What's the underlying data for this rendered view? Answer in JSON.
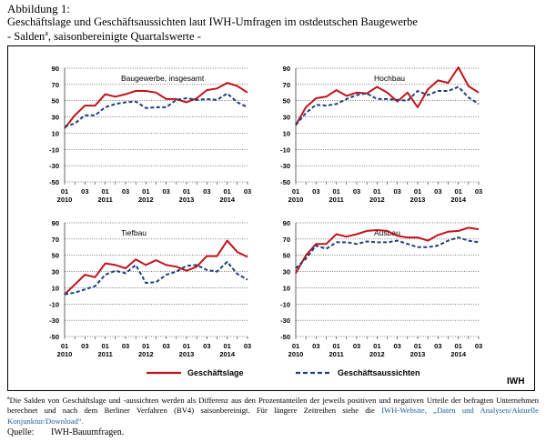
{
  "figure": {
    "label": "Abbildung 1:",
    "title": "Geschäftslage und Geschäftsaussichten laut IWH-Umfragen im ostdeutschen Baugewerbe",
    "subtitle_prefix": "- Salden",
    "subtitle_sup": "a",
    "subtitle_suffix": ", saisonbereinigte Quartalswerte -"
  },
  "legend": {
    "series1": "Geschäftslage",
    "series2": "Geschäftsaussichten",
    "brand": "IWH"
  },
  "colors": {
    "geschaeftslage": "#c0141c",
    "geschaeftsaussichten": "#1f3f7a",
    "grid": "#000000"
  },
  "footnote": {
    "sup": "a",
    "text": "Die Salden von Geschäftslage und -aussichten werden als Differenz aus den Prozentanteilen der jeweils positiven und negativen Urteile der befragten Unternehmen berechnet und nach dem Berliner Verfahren (BV4) saisonbereinigt. Für längere Zeitreihen siehe die ",
    "link": "IWH-Website, „Daten und Analysen/Aktuelle Konjunktur/Download“.",
    "end": ""
  },
  "source": {
    "label": "Quelle:",
    "text": "IWH-Bauumfragen."
  },
  "chart_data": [
    {
      "type": "line",
      "panel_label": "Baugewerbe, insgesamt",
      "x_ticks_quarter": [
        "01",
        "03",
        "01",
        "03",
        "01",
        "03",
        "01",
        "03",
        "01",
        "03"
      ],
      "x_ticks_year": [
        "2010",
        "2011",
        "2012",
        "2013",
        "2014"
      ],
      "y_ticks": [
        "90",
        "70",
        "50",
        "30",
        "10",
        "-10",
        "-30",
        "-50"
      ],
      "ylim": [
        -50,
        90
      ],
      "grid": true,
      "series": [
        {
          "name": "Geschäftslage",
          "values": [
            16,
            32,
            44,
            44,
            58,
            55,
            58,
            62,
            62,
            60,
            52,
            52,
            48,
            53,
            63,
            65,
            72,
            68,
            60
          ]
        },
        {
          "name": "Geschäftsaussichten",
          "values": [
            18,
            22,
            32,
            32,
            42,
            46,
            48,
            49,
            41,
            42,
            42,
            51,
            53,
            51,
            52,
            51,
            59,
            48,
            42
          ]
        }
      ]
    },
    {
      "type": "line",
      "panel_label": "Hochbau",
      "x_ticks_quarter": [
        "01",
        "03",
        "01",
        "03",
        "01",
        "03",
        "01",
        "03",
        "01",
        "03"
      ],
      "x_ticks_year": [
        "2010",
        "2011",
        "2012",
        "2013",
        "2014"
      ],
      "y_ticks": [
        "90",
        "70",
        "50",
        "30",
        "10",
        "-10",
        "-30",
        "-50"
      ],
      "ylim": [
        -50,
        90
      ],
      "grid": true,
      "series": [
        {
          "name": "Geschäftslage",
          "values": [
            20,
            42,
            53,
            55,
            63,
            56,
            60,
            59,
            67,
            60,
            49,
            60,
            42,
            64,
            75,
            72,
            91,
            68,
            60
          ]
        },
        {
          "name": "Geschäftsaussichten",
          "values": [
            20,
            35,
            45,
            44,
            46,
            52,
            57,
            59,
            52,
            52,
            51,
            50,
            62,
            57,
            62,
            62,
            67,
            54,
            46
          ]
        }
      ]
    },
    {
      "type": "line",
      "panel_label": "Tiefbau",
      "x_ticks_quarter": [
        "01",
        "03",
        "01",
        "03",
        "01",
        "03",
        "01",
        "03",
        "01",
        "03"
      ],
      "x_ticks_year": [
        "2010",
        "2011",
        "2012",
        "2013",
        "2014"
      ],
      "y_ticks": [
        "90",
        "70",
        "50",
        "30",
        "10",
        "-10",
        "-30",
        "-50"
      ],
      "ylim": [
        -50,
        90
      ],
      "grid": true,
      "series": [
        {
          "name": "Geschäftslage",
          "values": [
            2,
            14,
            26,
            23,
            40,
            38,
            34,
            45,
            38,
            44,
            38,
            36,
            31,
            36,
            49,
            49,
            68,
            54,
            48
          ]
        },
        {
          "name": "Geschäftsaussichten",
          "values": [
            2,
            4,
            8,
            12,
            26,
            31,
            28,
            38,
            16,
            17,
            26,
            30,
            37,
            38,
            32,
            30,
            42,
            27,
            20
          ]
        }
      ]
    },
    {
      "type": "line",
      "panel_label": "Ausbau",
      "x_ticks_quarter": [
        "01",
        "03",
        "01",
        "03",
        "01",
        "03",
        "01",
        "03",
        "01",
        "03"
      ],
      "x_ticks_year": [
        "2010",
        "2011",
        "2012",
        "2013",
        "2014"
      ],
      "y_ticks": [
        "90",
        "70",
        "50",
        "30",
        "10",
        "-10",
        "-30",
        "-50"
      ],
      "ylim": [
        -50,
        90
      ],
      "grid": true,
      "series": [
        {
          "name": "Geschäftslage",
          "values": [
            28,
            50,
            64,
            64,
            76,
            73,
            76,
            80,
            81,
            80,
            74,
            72,
            72,
            68,
            75,
            79,
            80,
            84,
            82
          ]
        },
        {
          "name": "Geschäftsaussichten",
          "values": [
            34,
            46,
            62,
            58,
            66,
            66,
            64,
            67,
            66,
            66,
            68,
            64,
            60,
            60,
            62,
            68,
            72,
            68,
            66
          ]
        }
      ]
    }
  ]
}
